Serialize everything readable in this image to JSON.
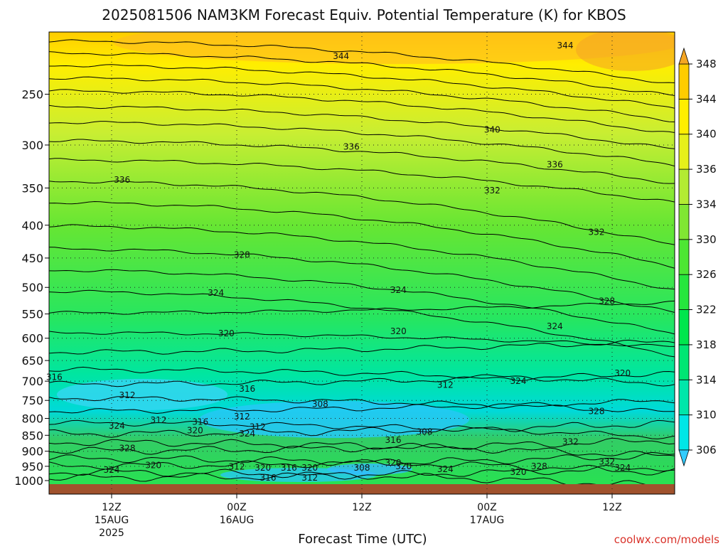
{
  "colors": {
    "ground": "#a0522d",
    "credit": "#d9322a",
    "palette": [
      "#33ccff",
      "#00e6e6",
      "#00e6aa",
      "#00e673",
      "#00e64d",
      "#26e63d",
      "#4de633",
      "#80e633",
      "#b3eb33",
      "#e6f01a",
      "#ffee00",
      "#ffcc00",
      "#f5a623"
    ]
  },
  "chart_data": {
    "type": "heatmap",
    "title": "2025081506 NAM3KM Forecast Equiv. Potential Temperature (K) for KBOS",
    "xlabel": "Forecast Time (UTC)",
    "ylabel": "",
    "y_scale": "log",
    "y_inverted": true,
    "ylim": [
      1000,
      200
    ],
    "y_ticks": [
      250,
      300,
      350,
      400,
      450,
      500,
      550,
      600,
      650,
      700,
      750,
      800,
      850,
      900,
      950,
      1000
    ],
    "x_ticks": [
      {
        "time": "2025-08-15T12:00Z",
        "label": "12Z",
        "label2": "15AUG",
        "label3": "2025"
      },
      {
        "time": "2025-08-16T00:00Z",
        "label": "00Z",
        "label2": "16AUG",
        "label3": ""
      },
      {
        "time": "2025-08-16T12:00Z",
        "label": "12Z",
        "label2": "",
        "label3": ""
      },
      {
        "time": "2025-08-17T00:00Z",
        "label": "00Z",
        "label2": "17AUG",
        "label3": ""
      },
      {
        "time": "2025-08-17T12:00Z",
        "label": "12Z",
        "label2": "",
        "label3": ""
      }
    ],
    "xlim": [
      "2025-08-15T06:00Z",
      "2025-08-17T18:00Z"
    ],
    "grid": true,
    "colorbar": {
      "levels": [
        306,
        310,
        314,
        318,
        322,
        326,
        330,
        334,
        336,
        340,
        344,
        348
      ],
      "extend": "both"
    },
    "contour_labels": [
      {
        "time": "2025-08-15T06:30Z",
        "p": 690,
        "value": "316"
      },
      {
        "time": "2025-08-15T13:00Z",
        "p": 340,
        "value": "336"
      },
      {
        "time": "2025-08-15T13:30Z",
        "p": 736,
        "value": "312"
      },
      {
        "time": "2025-08-15T12:30Z",
        "p": 822,
        "value": "324"
      },
      {
        "time": "2025-08-15T16:30Z",
        "p": 805,
        "value": "312"
      },
      {
        "time": "2025-08-15T20:30Z",
        "p": 810,
        "value": "316"
      },
      {
        "time": "2025-08-15T13:30Z",
        "p": 890,
        "value": "328"
      },
      {
        "time": "2025-08-15T16:00Z",
        "p": 947,
        "value": "320"
      },
      {
        "time": "2025-08-15T12:00Z",
        "p": 962,
        "value": "324"
      },
      {
        "time": "2025-08-15T20:00Z",
        "p": 835,
        "value": "320"
      },
      {
        "time": "2025-08-16T00:30Z",
        "p": 795,
        "value": "312"
      },
      {
        "time": "2025-08-16T02:00Z",
        "p": 825,
        "value": "312"
      },
      {
        "time": "2025-08-16T01:00Z",
        "p": 845,
        "value": "324"
      },
      {
        "time": "2025-08-15T22:00Z",
        "p": 510,
        "value": "324"
      },
      {
        "time": "2025-08-15T23:00Z",
        "p": 590,
        "value": "320"
      },
      {
        "time": "2025-08-16T00:30Z",
        "p": 445,
        "value": "328"
      },
      {
        "time": "2025-08-16T01:00Z",
        "p": 720,
        "value": "316"
      },
      {
        "time": "2025-08-16T00:00Z",
        "p": 952,
        "value": "312"
      },
      {
        "time": "2025-08-16T02:30Z",
        "p": 955,
        "value": "320"
      },
      {
        "time": "2025-08-16T05:00Z",
        "p": 955,
        "value": "316"
      },
      {
        "time": "2025-08-16T07:00Z",
        "p": 955,
        "value": "320"
      },
      {
        "time": "2025-08-16T03:00Z",
        "p": 990,
        "value": "316"
      },
      {
        "time": "2025-08-16T07:00Z",
        "p": 990,
        "value": "312"
      },
      {
        "time": "2025-08-16T12:00Z",
        "p": 955,
        "value": "308"
      },
      {
        "time": "2025-08-16T08:00Z",
        "p": 760,
        "value": "308"
      },
      {
        "time": "2025-08-16T15:30Z",
        "p": 505,
        "value": "324"
      },
      {
        "time": "2025-08-16T15:30Z",
        "p": 585,
        "value": "320"
      },
      {
        "time": "2025-08-16T15:00Z",
        "p": 865,
        "value": "316"
      },
      {
        "time": "2025-08-16T15:00Z",
        "p": 938,
        "value": "320"
      },
      {
        "time": "2025-08-16T18:00Z",
        "p": 840,
        "value": "308"
      },
      {
        "time": "2025-08-16T16:00Z",
        "p": 950,
        "value": "320"
      },
      {
        "time": "2025-08-16T20:00Z",
        "p": 960,
        "value": "324"
      },
      {
        "time": "2025-08-16T11:00Z",
        "p": 302,
        "value": "336"
      },
      {
        "time": "2025-08-16T10:00Z",
        "p": 218,
        "value": "344"
      },
      {
        "time": "2025-08-16T20:00Z",
        "p": 710,
        "value": "312"
      },
      {
        "time": "2025-08-17T00:30Z",
        "p": 353,
        "value": "332"
      },
      {
        "time": "2025-08-17T00:30Z",
        "p": 284,
        "value": "340"
      },
      {
        "time": "2025-08-17T03:00Z",
        "p": 700,
        "value": "324"
      },
      {
        "time": "2025-08-17T03:00Z",
        "p": 970,
        "value": "320"
      },
      {
        "time": "2025-08-17T05:00Z",
        "p": 950,
        "value": "328"
      },
      {
        "time": "2025-08-17T06:30Z",
        "p": 322,
        "value": "336"
      },
      {
        "time": "2025-08-17T06:30Z",
        "p": 575,
        "value": "324"
      },
      {
        "time": "2025-08-17T08:00Z",
        "p": 870,
        "value": "332"
      },
      {
        "time": "2025-08-17T07:30Z",
        "p": 210,
        "value": "344"
      },
      {
        "time": "2025-08-17T10:30Z",
        "p": 780,
        "value": "328"
      },
      {
        "time": "2025-08-17T10:30Z",
        "p": 410,
        "value": "332"
      },
      {
        "time": "2025-08-17T11:30Z",
        "p": 525,
        "value": "328"
      },
      {
        "time": "2025-08-17T11:30Z",
        "p": 935,
        "value": "332"
      },
      {
        "time": "2025-08-17T13:00Z",
        "p": 955,
        "value": "324"
      },
      {
        "time": "2025-08-17T13:00Z",
        "p": 680,
        "value": "320"
      }
    ]
  },
  "credit": "coolwx.com/models"
}
